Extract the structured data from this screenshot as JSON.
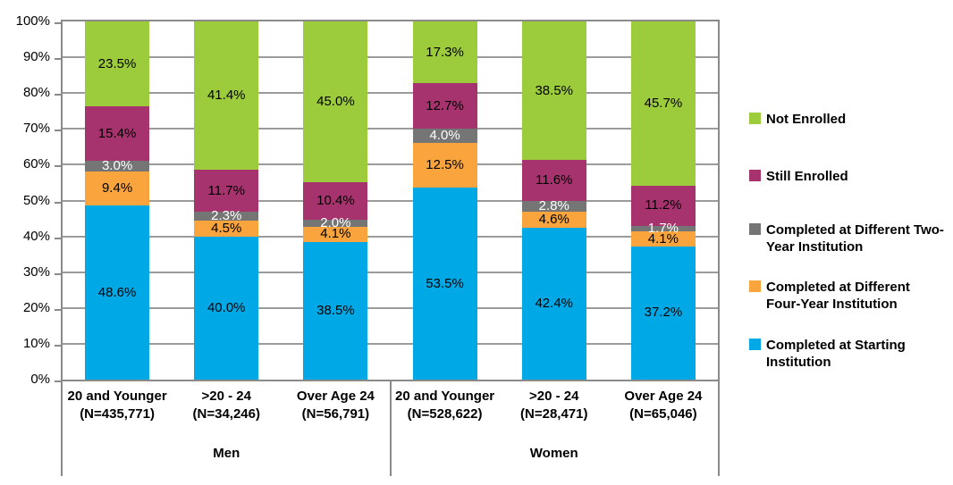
{
  "chart_data": {
    "type": "bar",
    "stacked": true,
    "orientation": "vertical",
    "title": "",
    "xlabel": "",
    "ylabel": "",
    "ylim": [
      0,
      100
    ],
    "grid": true,
    "legend_position": "right",
    "y_tick_labels": [
      "0%",
      "10%",
      "20%",
      "30%",
      "40%",
      "50%",
      "60%",
      "70%",
      "80%",
      "90%",
      "100%"
    ],
    "groups": [
      {
        "label": "Men"
      },
      {
        "label": "Women"
      }
    ],
    "categories": [
      {
        "group": "Men",
        "line1": "20 and Younger",
        "line2": "(N=435,771)"
      },
      {
        "group": "Men",
        "line1": ">20 - 24",
        "line2": "(N=34,246)"
      },
      {
        "group": "Men",
        "line1": "Over Age 24",
        "line2": "(N=56,791)"
      },
      {
        "group": "Women",
        "line1": "20 and Younger",
        "line2": "(N=528,622)"
      },
      {
        "group": "Women",
        "line1": ">20 - 24",
        "line2": "(N=28,471)"
      },
      {
        "group": "Women",
        "line1": "Over Age 24",
        "line2": "(N=65,046)"
      }
    ],
    "series": [
      {
        "name": "Completed at Starting Institution",
        "color": "#00A9E6",
        "label_color": "#000000",
        "values": [
          48.6,
          40.0,
          38.5,
          53.5,
          42.4,
          37.2
        ]
      },
      {
        "name": "Completed at Different Four-Year Institution",
        "color": "#F9A43C",
        "label_color": "#000000",
        "values": [
          9.4,
          4.5,
          4.1,
          12.5,
          4.6,
          4.1
        ]
      },
      {
        "name": "Completed at Different Two-Year Institution",
        "color": "#757575",
        "label_color": "#FFFFFF",
        "values": [
          3.0,
          2.3,
          2.0,
          4.0,
          2.8,
          1.7
        ]
      },
      {
        "name": "Still Enrolled",
        "color": "#A7336E",
        "label_color": "#000000",
        "values": [
          15.4,
          11.7,
          10.4,
          12.7,
          11.6,
          11.2
        ]
      },
      {
        "name": "Not Enrolled",
        "color": "#9CCB3C",
        "label_color": "#000000",
        "values": [
          23.5,
          41.4,
          45.0,
          17.3,
          38.5,
          45.7
        ]
      }
    ],
    "legend_order_top_to_bottom": [
      "Not Enrolled",
      "Still Enrolled",
      "Completed at Different Two-Year Institution",
      "Completed at Different Four-Year Institution",
      "Completed at Starting Institution"
    ],
    "colors": {
      "gridline": "#9b9b9b",
      "axis_border": "#8a8a8a",
      "background": "#ffffff"
    }
  }
}
